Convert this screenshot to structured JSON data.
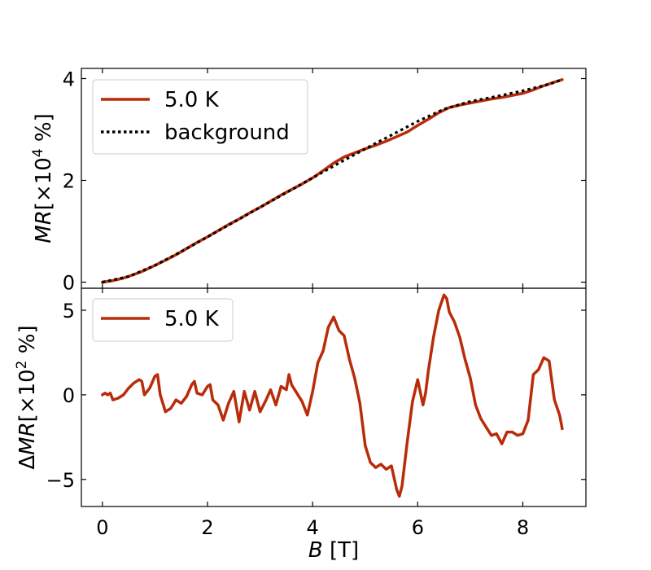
{
  "chart_data": [
    {
      "type": "line",
      "ylabel_var": "MR",
      "ylabel_rest": "[×10",
      "ylabel_exp": "4",
      "ylabel_unit": " %]",
      "xlim": [
        -0.4,
        9.2
      ],
      "ylim": [
        -0.12,
        4.2
      ],
      "xticks": [
        0,
        2,
        4,
        6,
        8
      ],
      "yticks": [
        0,
        2,
        4
      ],
      "ytick_labels": [
        "0",
        "2",
        "4"
      ],
      "legend": {
        "position": "top-left",
        "entries": [
          "5.0 K",
          "background"
        ]
      },
      "series": [
        {
          "name": "5.0 K",
          "color": "#b82c0a",
          "style": "solid",
          "x": [
            0,
            0.2,
            0.4,
            0.6,
            0.8,
            1.0,
            1.2,
            1.4,
            1.6,
            1.8,
            2.0,
            2.2,
            2.4,
            2.6,
            2.8,
            3.0,
            3.2,
            3.4,
            3.6,
            3.8,
            4.0,
            4.2,
            4.4,
            4.6,
            4.8,
            5.0,
            5.2,
            5.4,
            5.6,
            5.8,
            6.0,
            6.2,
            6.4,
            6.6,
            6.8,
            7.0,
            7.2,
            7.4,
            7.6,
            7.8,
            8.0,
            8.2,
            8.4,
            8.6,
            8.75
          ],
          "y": [
            0.0,
            0.03,
            0.08,
            0.15,
            0.23,
            0.33,
            0.43,
            0.54,
            0.66,
            0.78,
            0.89,
            1.01,
            1.13,
            1.24,
            1.36,
            1.47,
            1.59,
            1.71,
            1.82,
            1.93,
            2.05,
            2.19,
            2.34,
            2.46,
            2.54,
            2.62,
            2.69,
            2.77,
            2.86,
            2.95,
            3.08,
            3.2,
            3.33,
            3.43,
            3.48,
            3.52,
            3.56,
            3.6,
            3.63,
            3.67,
            3.71,
            3.78,
            3.86,
            3.93,
            3.98
          ]
        },
        {
          "name": "background",
          "color": "#000000",
          "style": "dotted",
          "x": [
            0,
            0.5,
            1.0,
            1.5,
            2.0,
            2.5,
            3.0,
            3.5,
            4.0,
            4.5,
            5.0,
            5.5,
            6.0,
            6.5,
            7.0,
            7.5,
            8.0,
            8.5,
            8.75
          ],
          "y": [
            0.0,
            0.11,
            0.33,
            0.6,
            0.89,
            1.18,
            1.47,
            1.76,
            2.05,
            2.34,
            2.62,
            2.89,
            3.16,
            3.4,
            3.55,
            3.65,
            3.76,
            3.89,
            3.98
          ]
        }
      ]
    },
    {
      "type": "line",
      "xlabel_var": "B",
      "xlabel_unit": " [T]",
      "ylabel_prefix": "Δ",
      "ylabel_var": "MR",
      "ylabel_rest": "[×10",
      "ylabel_exp": "2",
      "ylabel_unit": " %]",
      "xlim": [
        -0.4,
        9.2
      ],
      "ylim": [
        -6.6,
        6.3
      ],
      "xticks": [
        0,
        2,
        4,
        6,
        8
      ],
      "xtick_labels": [
        "0",
        "2",
        "4",
        "6",
        "8"
      ],
      "yticks": [
        -5,
        0,
        5
      ],
      "ytick_labels": [
        "−5",
        "0",
        "5"
      ],
      "legend": {
        "position": "top-left",
        "entries": [
          "5.0 K"
        ]
      },
      "series": [
        {
          "name": "5.0 K",
          "color": "#b82c0a",
          "style": "solid",
          "x": [
            0,
            0.05,
            0.1,
            0.15,
            0.2,
            0.3,
            0.4,
            0.5,
            0.6,
            0.7,
            0.75,
            0.8,
            0.9,
            1.0,
            1.05,
            1.1,
            1.2,
            1.3,
            1.4,
            1.5,
            1.6,
            1.7,
            1.75,
            1.8,
            1.9,
            2.0,
            2.05,
            2.1,
            2.2,
            2.3,
            2.4,
            2.5,
            2.6,
            2.7,
            2.8,
            2.9,
            3.0,
            3.1,
            3.2,
            3.3,
            3.4,
            3.5,
            3.55,
            3.6,
            3.7,
            3.8,
            3.9,
            4.0,
            4.1,
            4.2,
            4.3,
            4.4,
            4.5,
            4.6,
            4.7,
            4.8,
            4.9,
            5.0,
            5.1,
            5.2,
            5.3,
            5.4,
            5.5,
            5.6,
            5.65,
            5.7,
            5.8,
            5.9,
            6.0,
            6.1,
            6.15,
            6.2,
            6.3,
            6.4,
            6.5,
            6.55,
            6.6,
            6.7,
            6.8,
            6.9,
            7.0,
            7.1,
            7.2,
            7.3,
            7.4,
            7.5,
            7.6,
            7.7,
            7.8,
            7.9,
            8.0,
            8.1,
            8.2,
            8.3,
            8.4,
            8.5,
            8.6,
            8.7,
            8.75
          ],
          "y": [
            0.0,
            0.1,
            0.0,
            0.1,
            -0.3,
            -0.2,
            0.0,
            0.4,
            0.7,
            0.9,
            0.8,
            0.0,
            0.4,
            1.1,
            1.2,
            0.0,
            -1.0,
            -0.8,
            -0.3,
            -0.5,
            -0.1,
            0.6,
            0.8,
            0.1,
            0.0,
            0.5,
            0.6,
            -0.3,
            -0.6,
            -1.5,
            -0.5,
            0.2,
            -1.6,
            0.2,
            -0.9,
            0.2,
            -1.0,
            -0.4,
            0.3,
            -0.6,
            0.5,
            0.3,
            1.2,
            0.6,
            0.1,
            -0.4,
            -1.2,
            0.2,
            1.9,
            2.6,
            4.0,
            4.6,
            3.8,
            3.5,
            2.1,
            1.0,
            -0.5,
            -3.0,
            -4.0,
            -4.3,
            -4.1,
            -4.4,
            -4.2,
            -5.6,
            -6.0,
            -5.4,
            -2.8,
            -0.4,
            0.9,
            -0.6,
            0.1,
            1.4,
            3.4,
            5.0,
            5.9,
            5.7,
            4.9,
            4.3,
            3.4,
            2.1,
            1.0,
            -0.6,
            -1.4,
            -1.9,
            -2.4,
            -2.3,
            -2.9,
            -2.2,
            -2.2,
            -2.4,
            -2.3,
            -1.5,
            1.2,
            1.5,
            2.2,
            2.0,
            -0.3,
            -1.2,
            -2.0
          ]
        }
      ]
    }
  ]
}
